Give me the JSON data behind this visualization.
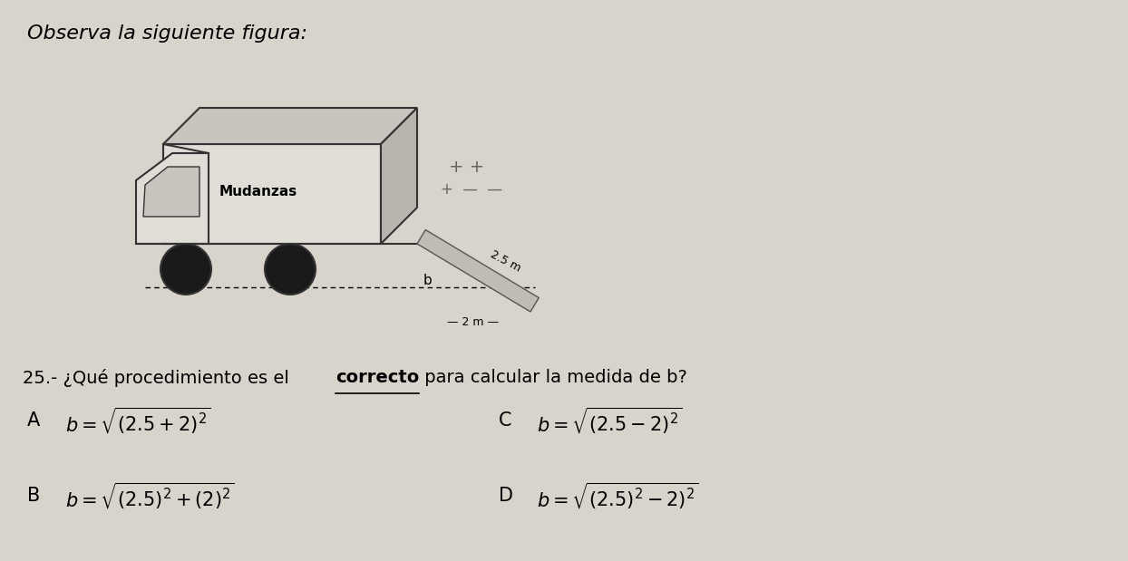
{
  "background_color": "#d8d4cc",
  "title_text": "Observa la siguiente figura:",
  "question_pre": "25.- ¿Qué procedimiento es el ",
  "question_bold": "correcto",
  "question_post": " para calcular la medida de b?",
  "label_mudanzas": "Mudanzas",
  "label_25m": "2.5 m",
  "label_2m": "2 m",
  "label_b": "b",
  "truck_face1": "#e0ddd6",
  "truck_face2": "#c8c5be",
  "truck_face3": "#b8b5ae",
  "truck_edge": "#333333",
  "wheel_face": "#1a1a1a",
  "ramp_face": "#c0bcb5",
  "ramp_edge": "#555555",
  "option_A": "$b = \\sqrt{(2.5+2)^2}$",
  "option_B": "$b = \\sqrt{(2.5)^2+(2)^2}$",
  "option_C": "$b = \\sqrt{(2.5-2)^2}$",
  "option_D": "$b = \\sqrt{(2.5)^2-2)^2}$"
}
